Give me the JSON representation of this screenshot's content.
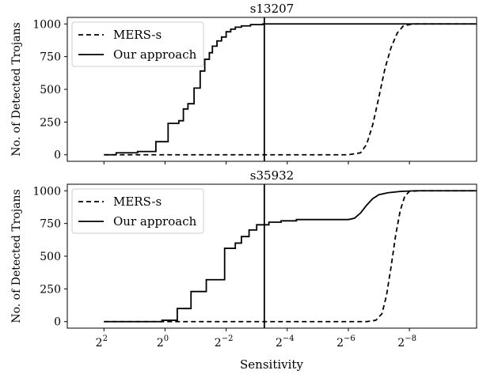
{
  "chart_data": [
    {
      "type": "line",
      "title": "s13207",
      "xlabel": "",
      "ylabel": "No. of Detected Trojans",
      "x_scale": "log2-reversed",
      "x_ticks": [
        {
          "exp": 2,
          "label": "2"
        },
        {
          "exp": 0,
          "label": "0"
        },
        {
          "exp": -2,
          "label": "−2"
        },
        {
          "exp": -4,
          "label": "−4"
        },
        {
          "exp": -6,
          "label": "−6"
        },
        {
          "exp": -8,
          "label": "−8"
        }
      ],
      "x_base_label": "2",
      "xlim_exp": [
        3.2,
        -10.2
      ],
      "ylim": [
        -50,
        1050
      ],
      "y_ticks": [
        0,
        250,
        500,
        750,
        1000
      ],
      "legend_position": "upper-left",
      "vline_exp": -3.25,
      "series": [
        {
          "name": "MERS-s",
          "style": "dashed",
          "points": [
            [
              2,
              0
            ],
            [
              -6.0,
              0
            ],
            [
              -6.4,
              15
            ],
            [
              -6.6,
              80
            ],
            [
              -6.8,
              230
            ],
            [
              -7.0,
              440
            ],
            [
              -7.2,
              660
            ],
            [
              -7.4,
              820
            ],
            [
              -7.6,
              930
            ],
            [
              -7.8,
              985
            ],
            [
              -8.1,
              1000
            ],
            [
              -10.2,
              1000
            ]
          ]
        },
        {
          "name": "Our approach",
          "style": "solid",
          "steps": [
            [
              2,
              0
            ],
            [
              1.6,
              15
            ],
            [
              0.9,
              25
            ],
            [
              0.3,
              100
            ],
            [
              -0.1,
              240
            ],
            [
              -0.45,
              260
            ],
            [
              -0.6,
              350
            ],
            [
              -0.75,
              390
            ],
            [
              -0.95,
              510
            ],
            [
              -1.15,
              640
            ],
            [
              -1.3,
              730
            ],
            [
              -1.45,
              780
            ],
            [
              -1.55,
              830
            ],
            [
              -1.7,
              870
            ],
            [
              -1.85,
              900
            ],
            [
              -2.0,
              940
            ],
            [
              -2.15,
              960
            ],
            [
              -2.3,
              975
            ],
            [
              -2.5,
              985
            ],
            [
              -2.8,
              995
            ],
            [
              -3.2,
              1000
            ],
            [
              -10.2,
              1000
            ]
          ]
        }
      ]
    },
    {
      "type": "line",
      "title": "s35932",
      "xlabel": "Sensitivity",
      "ylabel": "No. of Detected Trojans",
      "x_scale": "log2-reversed",
      "x_ticks": [
        {
          "exp": 2,
          "label": "2"
        },
        {
          "exp": 0,
          "label": "0"
        },
        {
          "exp": -2,
          "label": "−2"
        },
        {
          "exp": -4,
          "label": "−4"
        },
        {
          "exp": -6,
          "label": "−6"
        },
        {
          "exp": -8,
          "label": "−8"
        }
      ],
      "x_base_label": "2",
      "xlim_exp": [
        3.2,
        -10.2
      ],
      "ylim": [
        -50,
        1050
      ],
      "y_ticks": [
        0,
        250,
        500,
        750,
        1000
      ],
      "legend_position": "upper-left",
      "vline_exp": -3.25,
      "series": [
        {
          "name": "MERS-s",
          "style": "dashed",
          "points": [
            [
              2,
              0
            ],
            [
              -6.6,
              0
            ],
            [
              -6.9,
              10
            ],
            [
              -7.1,
              60
            ],
            [
              -7.25,
              200
            ],
            [
              -7.4,
              420
            ],
            [
              -7.55,
              660
            ],
            [
              -7.7,
              850
            ],
            [
              -7.85,
              960
            ],
            [
              -8.0,
              995
            ],
            [
              -8.3,
              1000
            ],
            [
              -10.2,
              1000
            ]
          ]
        },
        {
          "name": "Our approach",
          "style": "solid",
          "steps": [
            [
              2,
              0
            ],
            [
              0.1,
              10
            ],
            [
              -0.4,
              100
            ],
            [
              -0.85,
              230
            ],
            [
              -1.35,
              320
            ],
            [
              -1.95,
              560
            ],
            [
              -2.3,
              600
            ],
            [
              -2.5,
              650
            ],
            [
              -2.75,
              700
            ],
            [
              -3.0,
              740
            ],
            [
              -3.4,
              760
            ],
            [
              -3.8,
              770
            ],
            [
              -4.3,
              780
            ],
            [
              -6.0,
              780
            ]
          ],
          "tail": [
            [
              -6.0,
              780
            ],
            [
              -6.2,
              790
            ],
            [
              -6.4,
              830
            ],
            [
              -6.6,
              890
            ],
            [
              -6.8,
              940
            ],
            [
              -7.0,
              970
            ],
            [
              -7.3,
              985
            ],
            [
              -7.7,
              995
            ],
            [
              -8.2,
              1000
            ],
            [
              -10.2,
              1000
            ]
          ]
        }
      ]
    }
  ]
}
